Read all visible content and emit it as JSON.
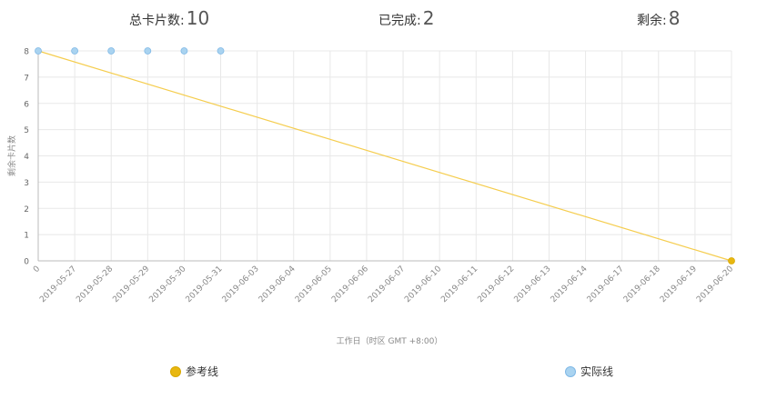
{
  "stats": {
    "total_label": "总卡片数:",
    "total_value": "10",
    "done_label": "已完成:",
    "done_value": "2",
    "remain_label": "剩余:",
    "remain_value": "8"
  },
  "legend": {
    "reference_label": "参考线",
    "actual_label": "实际线"
  },
  "colors": {
    "reference": "#f5cd4e",
    "reference_dot": "#e8b710",
    "actual": "#a9d3f0",
    "actual_stroke": "#7fb8e6",
    "grid": "#e8e8e8",
    "axis_text": "#888888"
  },
  "chart_data": {
    "type": "line",
    "x": [
      "0",
      "2019-05-27",
      "2019-05-28",
      "2019-05-29",
      "2019-05-30",
      "2019-05-31",
      "2019-06-03",
      "2019-06-04",
      "2019-06-05",
      "2019-06-06",
      "2019-06-07",
      "2019-06-10",
      "2019-06-11",
      "2019-06-12",
      "2019-06-13",
      "2019-06-14",
      "2019-06-17",
      "2019-06-18",
      "2019-06-19",
      "2019-06-20"
    ],
    "series": [
      {
        "name": "参考线",
        "x": [
          "0",
          "2019-06-20"
        ],
        "values": [
          8,
          0
        ]
      },
      {
        "name": "实际线",
        "x": [
          "0",
          "2019-05-27",
          "2019-05-28",
          "2019-05-29",
          "2019-05-30",
          "2019-05-31"
        ],
        "values": [
          8,
          8,
          8,
          8,
          8,
          8
        ]
      }
    ],
    "yticks": [
      0,
      1,
      2,
      3,
      4,
      5,
      6,
      7,
      8
    ],
    "ylim": [
      0,
      8
    ],
    "ylabel": "剩余卡片数",
    "xlabel": "工作日（时区 GMT +8:00）",
    "grid": true,
    "legend_position": "bottom"
  }
}
